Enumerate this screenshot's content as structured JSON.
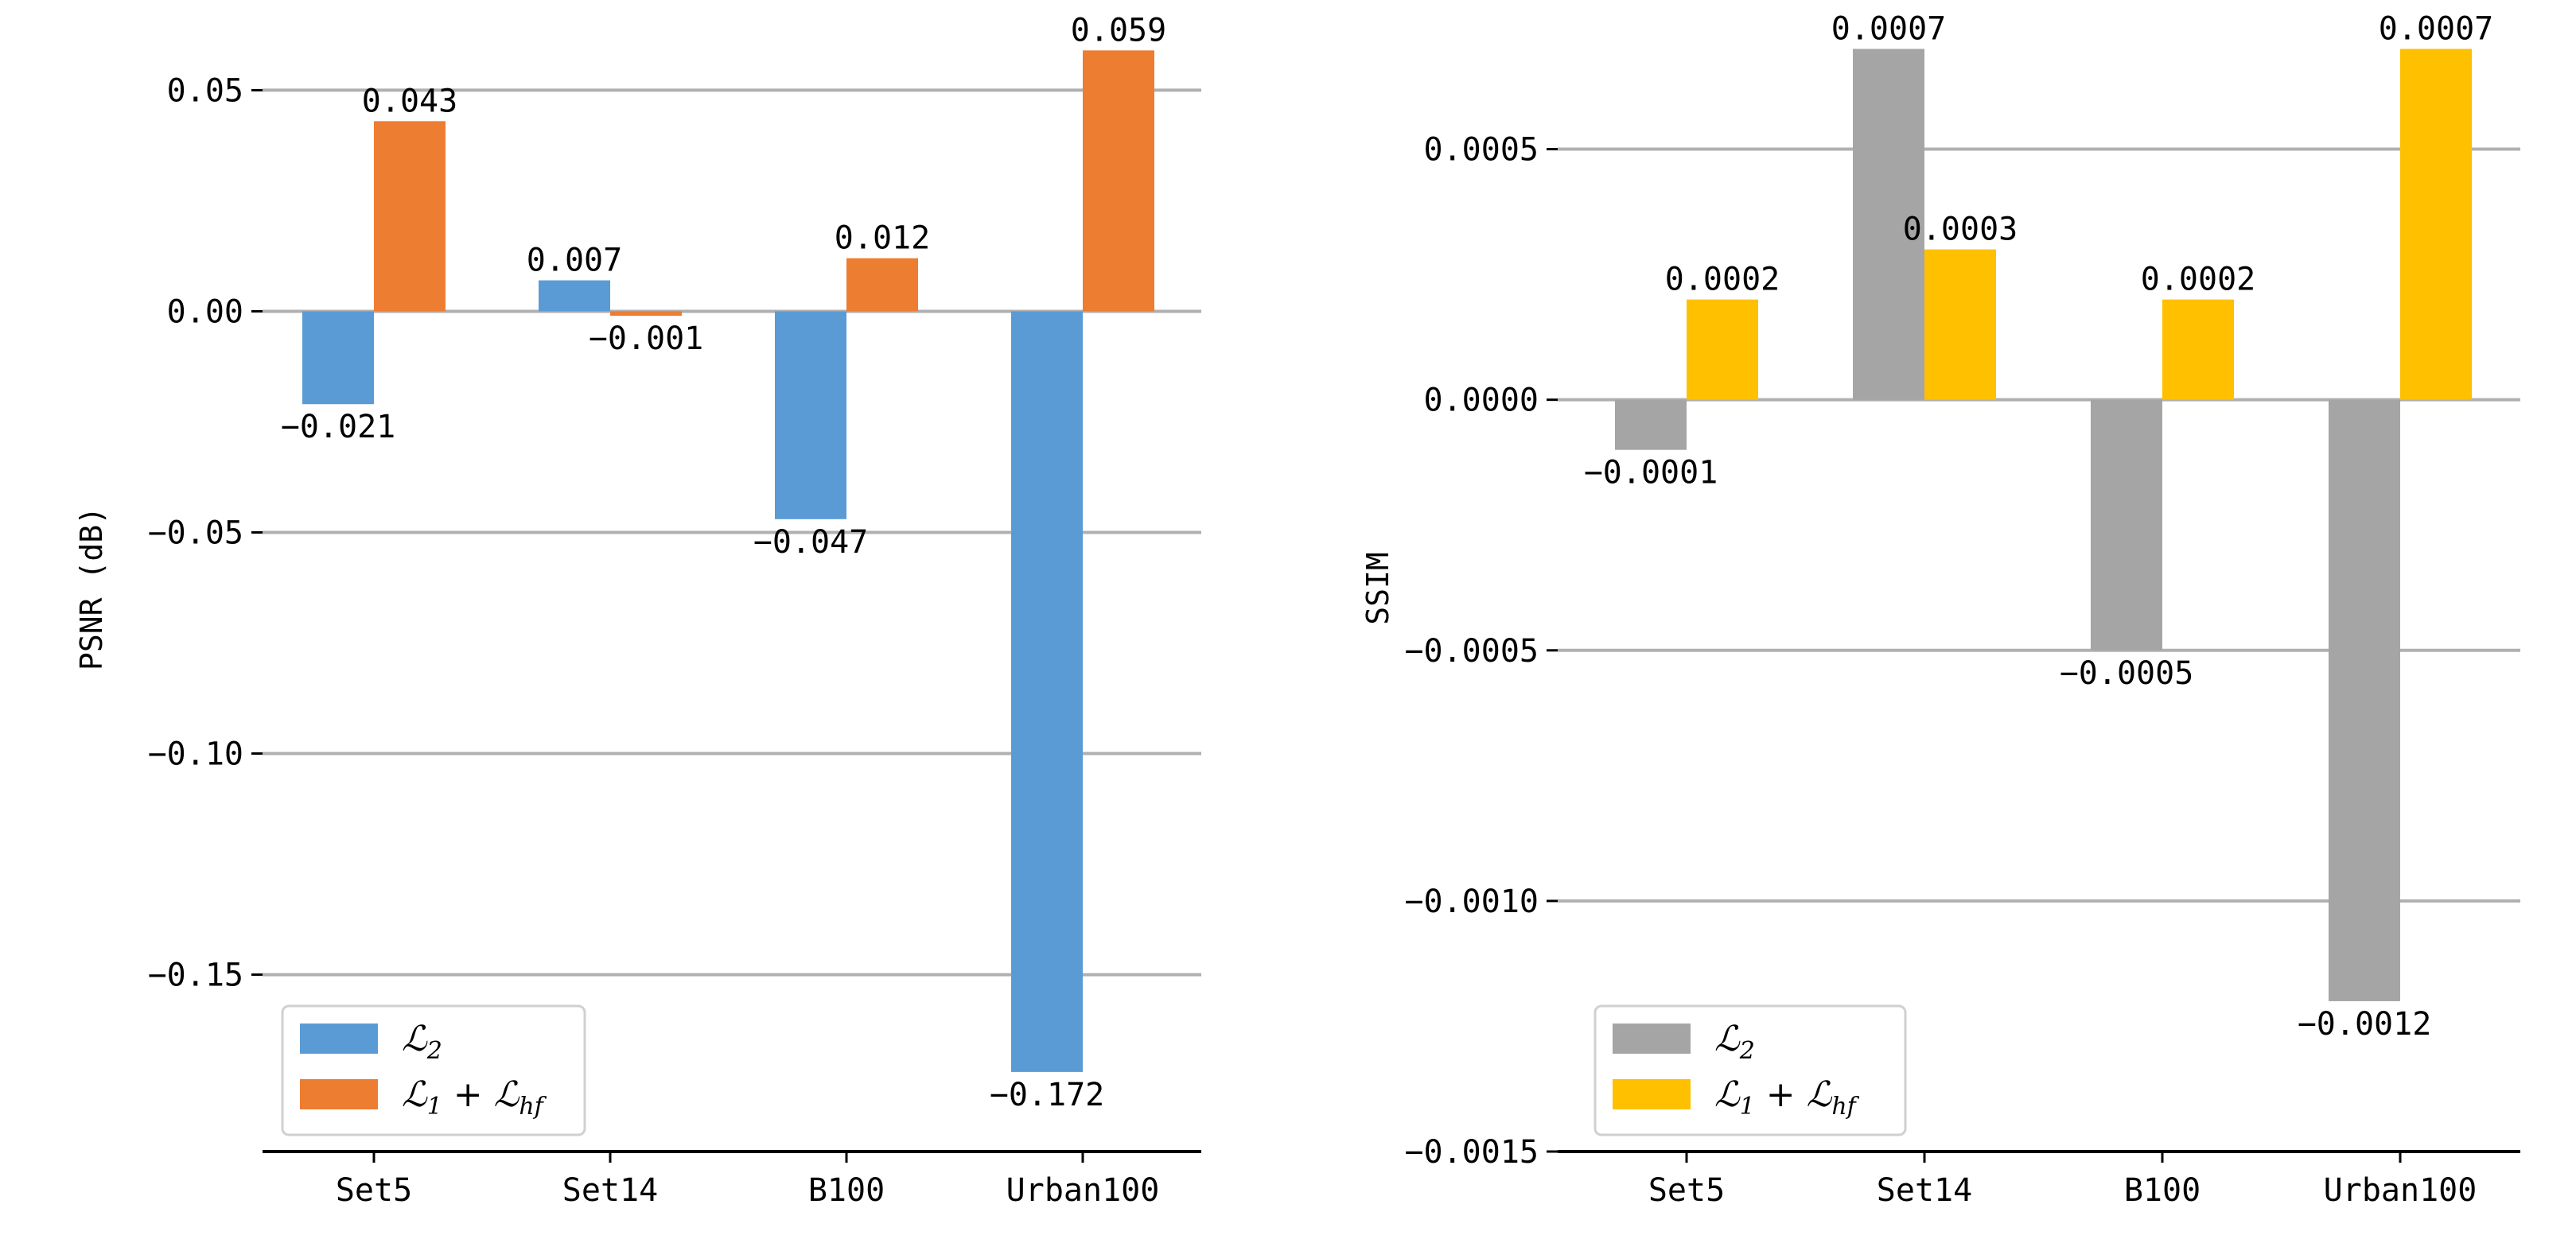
{
  "chart_data": [
    {
      "type": "bar",
      "categories": [
        "Set5",
        "Set14",
        "B100",
        "Urban100"
      ],
      "ylabel": "PSNR (dB)",
      "ylim": [
        -0.19,
        0.065
      ],
      "yticks": [
        0.05,
        0.0,
        -0.05,
        -0.1,
        -0.15
      ],
      "ytick_labels": [
        "0.05",
        "0.00",
        "−0.05",
        "−0.10",
        "−0.15"
      ],
      "grid": true,
      "legend_position": "lower-left",
      "series": [
        {
          "name": "L2",
          "legend_main": "ℒ",
          "legend_sub": "2",
          "color": "#5b9bd5",
          "values": [
            -0.021,
            0.007,
            -0.047,
            -0.172
          ],
          "labels": [
            "−0.021",
            "0.007",
            "−0.047",
            "−0.172"
          ]
        },
        {
          "name": "L1 + Lhf",
          "legend_main": "ℒ",
          "legend_sub": "1",
          "legend_plus": "+",
          "legend_main2": "ℒ",
          "legend_sub2": "hf",
          "color": "#ed7d31",
          "values": [
            0.043,
            -0.001,
            0.012,
            0.059
          ],
          "labels": [
            "0.043",
            "−0.001",
            "0.012",
            "0.059"
          ]
        }
      ]
    },
    {
      "type": "bar",
      "categories": [
        "Set5",
        "Set14",
        "B100",
        "Urban100"
      ],
      "ylabel": "SSIM",
      "ylim": [
        -0.0015,
        0.00075
      ],
      "yticks": [
        0.0005,
        0.0,
        -0.0005,
        -0.001,
        -0.0015
      ],
      "ytick_labels": [
        "0.0005",
        "0.0000",
        "−0.0005",
        "−0.0010",
        "−0.0015"
      ],
      "grid": true,
      "legend_position": "lower-left",
      "series": [
        {
          "name": "L2",
          "legend_main": "ℒ",
          "legend_sub": "2",
          "color": "#a5a5a5",
          "values": [
            -0.0001,
            0.0007,
            -0.0005,
            -0.0012
          ],
          "labels": [
            "−0.0001",
            "0.0007",
            "−0.0005",
            "−0.0012"
          ]
        },
        {
          "name": "L1 + Lhf",
          "legend_main": "ℒ",
          "legend_sub": "1",
          "legend_plus": "+",
          "legend_main2": "ℒ",
          "legend_sub2": "hf",
          "color": "#ffc000",
          "values": [
            0.0002,
            0.0003,
            0.0002,
            0.0007
          ],
          "labels": [
            "0.0002",
            "0.0003",
            "0.0002",
            "0.0007"
          ]
        }
      ]
    }
  ]
}
